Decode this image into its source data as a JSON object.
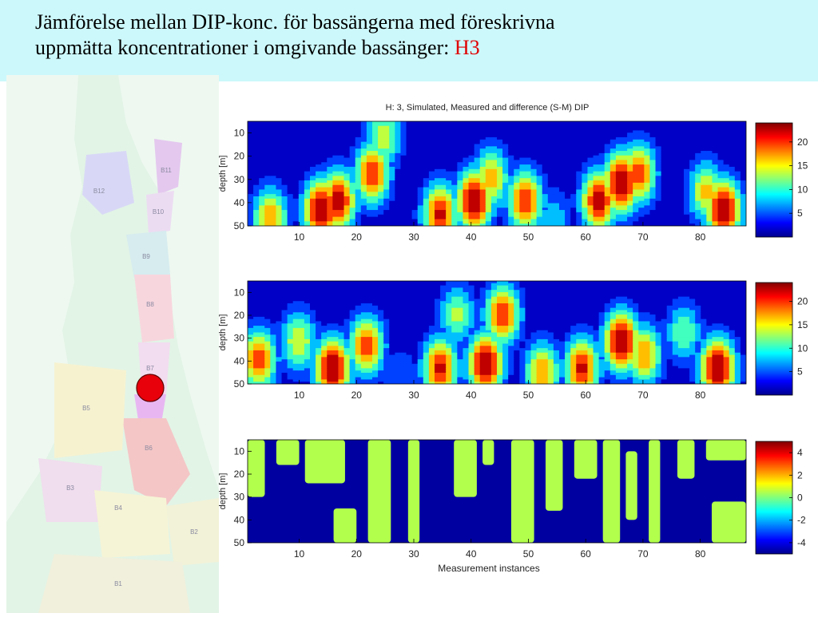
{
  "slide": {
    "title_line1": "Jämförelse mellan DIP-konc. för bassängerna med föreskrivna",
    "title_line2_prefix": "uppmätta koncentrationer i omgivande bassänger: ",
    "title_line2_highlight": "H3"
  },
  "map": {
    "basin_labels": [
      "B11",
      "B12",
      "B10",
      "B9",
      "B8",
      "B7",
      "B6",
      "B5",
      "B4",
      "B3",
      "B2",
      "B1"
    ],
    "colors": {
      "marker": "#e8000b",
      "highlight_basin": "#e8b7f2"
    }
  },
  "chart_data": [
    {
      "type": "heatmap",
      "title": "H: 3, Simulated, Measured and difference (S-M) DIP",
      "ylabel": "depth [m]",
      "xlabel": "",
      "xlim": [
        1,
        88
      ],
      "ylim": [
        50,
        5
      ],
      "x_ticks": [
        10,
        20,
        30,
        40,
        50,
        60,
        70,
        80
      ],
      "y_ticks": [
        10,
        20,
        30,
        40,
        50
      ],
      "colorbar": {
        "range": [
          0,
          24
        ],
        "ticks": [
          5,
          10,
          15,
          20
        ]
      },
      "peaks": [
        {
          "x": 5,
          "depth": 48,
          "value": 18
        },
        {
          "x": 14,
          "depth": 44,
          "value": 25
        },
        {
          "x": 17,
          "depth": 40,
          "value": 23
        },
        {
          "x": 23,
          "depth": 28,
          "value": 21
        },
        {
          "x": 25,
          "depth": 12,
          "value": 14
        },
        {
          "x": 35,
          "depth": 46,
          "value": 22
        },
        {
          "x": 41,
          "depth": 40,
          "value": 25
        },
        {
          "x": 44,
          "depth": 30,
          "value": 17
        },
        {
          "x": 50,
          "depth": 40,
          "value": 21
        },
        {
          "x": 55,
          "depth": 48,
          "value": 8
        },
        {
          "x": 63,
          "depth": 40,
          "value": 23
        },
        {
          "x": 67,
          "depth": 32,
          "value": 25
        },
        {
          "x": 70,
          "depth": 28,
          "value": 20
        },
        {
          "x": 82,
          "depth": 36,
          "value": 16
        },
        {
          "x": 85,
          "depth": 44,
          "value": 25
        }
      ]
    },
    {
      "type": "heatmap",
      "title": "",
      "ylabel": "depth [m]",
      "xlabel": "",
      "xlim": [
        1,
        88
      ],
      "ylim": [
        50,
        5
      ],
      "x_ticks": [
        10,
        20,
        30,
        40,
        50,
        60,
        70,
        80
      ],
      "y_ticks": [
        10,
        20,
        30,
        40,
        50
      ],
      "colorbar": {
        "range": [
          0,
          24
        ],
        "ticks": [
          5,
          10,
          15,
          20
        ]
      },
      "peaks": [
        {
          "x": 3,
          "depth": 40,
          "value": 20
        },
        {
          "x": 10,
          "depth": 32,
          "value": 15
        },
        {
          "x": 16,
          "depth": 44,
          "value": 26
        },
        {
          "x": 22,
          "depth": 34,
          "value": 20
        },
        {
          "x": 28,
          "depth": 48,
          "value": 6
        },
        {
          "x": 35,
          "depth": 44,
          "value": 22
        },
        {
          "x": 38,
          "depth": 20,
          "value": 13
        },
        {
          "x": 43,
          "depth": 42,
          "value": 25
        },
        {
          "x": 46,
          "depth": 20,
          "value": 21
        },
        {
          "x": 53,
          "depth": 46,
          "value": 18
        },
        {
          "x": 60,
          "depth": 44,
          "value": 22
        },
        {
          "x": 67,
          "depth": 32,
          "value": 25
        },
        {
          "x": 71,
          "depth": 38,
          "value": 18
        },
        {
          "x": 78,
          "depth": 28,
          "value": 12
        },
        {
          "x": 84,
          "depth": 44,
          "value": 26
        }
      ]
    },
    {
      "type": "heatmap",
      "title": "",
      "ylabel": "depth [m]",
      "xlabel": "Measurement instances",
      "xlim": [
        1,
        88
      ],
      "ylim": [
        50,
        5
      ],
      "x_ticks": [
        10,
        20,
        30,
        40,
        50,
        60,
        70,
        80
      ],
      "y_ticks": [
        10,
        20,
        30,
        40,
        50
      ],
      "colorbar": {
        "range": [
          -5,
          5
        ],
        "ticks": [
          -4,
          -2,
          0,
          2,
          4
        ]
      },
      "levels": {
        "positive": 0.5,
        "negative": -4.8
      },
      "positive_regions": [
        {
          "x0": 1,
          "x1": 4,
          "d0": 5,
          "d1": 30
        },
        {
          "x0": 6,
          "x1": 10,
          "d0": 5,
          "d1": 16
        },
        {
          "x0": 11,
          "x1": 18,
          "d0": 5,
          "d1": 24
        },
        {
          "x0": 16,
          "x1": 20,
          "d0": 35,
          "d1": 50
        },
        {
          "x0": 22,
          "x1": 26,
          "d0": 5,
          "d1": 50
        },
        {
          "x0": 29,
          "x1": 31,
          "d0": 5,
          "d1": 50
        },
        {
          "x0": 37,
          "x1": 41,
          "d0": 5,
          "d1": 30
        },
        {
          "x0": 42,
          "x1": 44,
          "d0": 5,
          "d1": 16
        },
        {
          "x0": 47,
          "x1": 51,
          "d0": 5,
          "d1": 50
        },
        {
          "x0": 53,
          "x1": 56,
          "d0": 5,
          "d1": 36
        },
        {
          "x0": 58,
          "x1": 62,
          "d0": 5,
          "d1": 22
        },
        {
          "x0": 63,
          "x1": 66,
          "d0": 5,
          "d1": 50
        },
        {
          "x0": 67,
          "x1": 69,
          "d0": 10,
          "d1": 40
        },
        {
          "x0": 71,
          "x1": 73,
          "d0": 5,
          "d1": 50
        },
        {
          "x0": 76,
          "x1": 79,
          "d0": 5,
          "d1": 22
        },
        {
          "x0": 81,
          "x1": 88,
          "d0": 5,
          "d1": 14
        },
        {
          "x0": 82,
          "x1": 88,
          "d0": 32,
          "d1": 50
        }
      ]
    }
  ]
}
